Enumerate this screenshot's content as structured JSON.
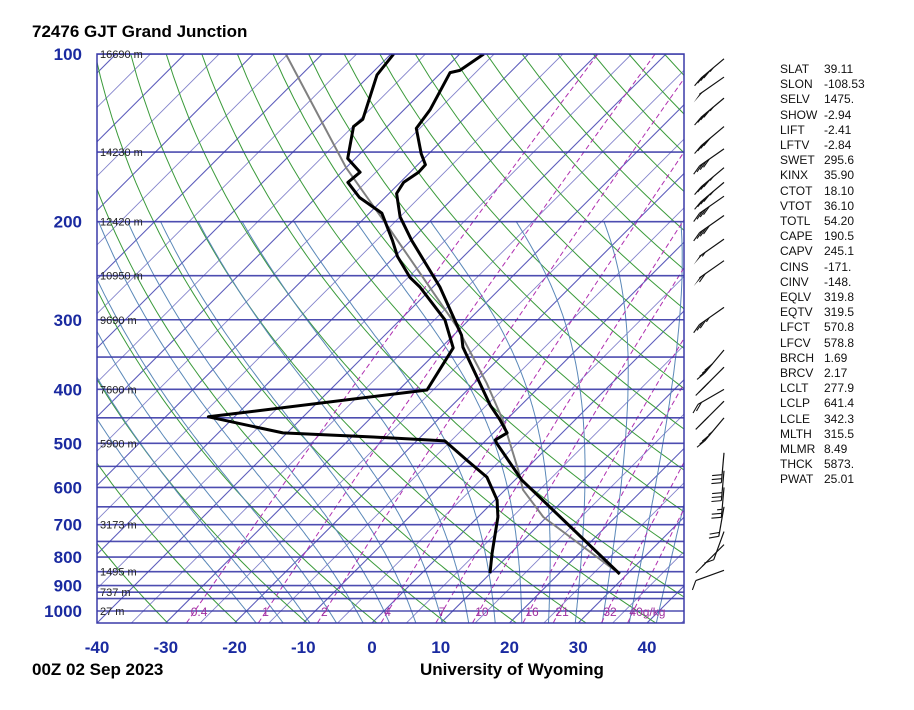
{
  "title": "72476 GJT Grand Junction",
  "footer_left": "00Z 02 Sep 2023",
  "footer_right": "University of Wyoming",
  "colors": {
    "isobar": "#3a3aa8",
    "isotherm": "#4040b0",
    "dry_adiabat": "#3a9a3a",
    "moist_adiabat": "#5a88b8",
    "mixing_ratio": "#b030b0",
    "temperature": "#000000",
    "dewpoint": "#000000",
    "parcel": "#808080",
    "axis_labels": "#1a2aa0"
  },
  "chart_data": {
    "type": "line",
    "diagram": "skew-T log-P",
    "xlabel": "",
    "ylabel": "",
    "x_ticks": [
      "-40",
      "-30",
      "-20",
      "-10",
      "0",
      "10",
      "20",
      "30",
      "40"
    ],
    "x_tick_values": [
      -40,
      -30,
      -20,
      -10,
      0,
      10,
      20,
      30,
      40
    ],
    "y_ticks": [
      "100",
      "200",
      "300",
      "400",
      "500",
      "600",
      "700",
      "800",
      "900",
      "1000"
    ],
    "y_tick_values": [
      100,
      200,
      300,
      400,
      500,
      600,
      700,
      800,
      900,
      1000
    ],
    "y_scale": "log",
    "ylim": [
      1050,
      100
    ],
    "xlim_at_bottom": [
      -40,
      45
    ],
    "height_labels": [
      {
        "p": 100,
        "label": "16690 m"
      },
      {
        "p": 150,
        "label": "14230 m"
      },
      {
        "p": 200,
        "label": "12420 m"
      },
      {
        "p": 250,
        "label": "10950 m"
      },
      {
        "p": 300,
        "label": "9690 m"
      },
      {
        "p": 400,
        "label": "7600 m"
      },
      {
        "p": 500,
        "label": "5900 m"
      },
      {
        "p": 700,
        "label": "3173 m"
      },
      {
        "p": 850,
        "label": "1495 m"
      },
      {
        "p": 925,
        "label": "737 m"
      },
      {
        "p": 1000,
        "label": "27 m"
      }
    ],
    "mixing_ratio_labels": [
      {
        "w": 0.4,
        "label": "0.4"
      },
      {
        "w": 1,
        "label": "1"
      },
      {
        "w": 2,
        "label": "2"
      },
      {
        "w": 4,
        "label": "4"
      },
      {
        "w": 7,
        "label": "7"
      },
      {
        "w": 10,
        "label": "10"
      },
      {
        "w": 16,
        "label": "16"
      },
      {
        "w": 21,
        "label": "21"
      },
      {
        "w": 32,
        "label": "32"
      },
      {
        "w": 40,
        "label": "40g/kg"
      }
    ],
    "temperature_profile": [
      [
        858,
        28.9
      ],
      [
        582,
        1.0
      ],
      [
        500,
        -8.0
      ],
      [
        493,
        -8.7
      ],
      [
        479,
        -8.0
      ],
      [
        454,
        -10.9
      ],
      [
        427,
        -14.5
      ],
      [
        336,
        -26.9
      ],
      [
        320,
        -28.8
      ],
      [
        262,
        -39.0
      ],
      [
        216,
        -49.9
      ],
      [
        196,
        -55.0
      ],
      [
        178,
        -58.9
      ],
      [
        170,
        -59.5
      ],
      [
        163,
        -58.8
      ],
      [
        158,
        -58.9
      ],
      [
        151,
        -61.1
      ],
      [
        136,
        -65.5
      ],
      [
        126,
        -66.2
      ],
      [
        108,
        -68.7
      ],
      [
        107,
        -67.6
      ],
      [
        100,
        -66.5
      ]
    ],
    "dewpoint_profile": [
      [
        855,
        9.9
      ],
      [
        787,
        7.3
      ],
      [
        678,
        2.9
      ],
      [
        632,
        0.3
      ],
      [
        575,
        -4.5
      ],
      [
        536,
        -9.9
      ],
      [
        495,
        -15.9
      ],
      [
        487,
        -26.9
      ],
      [
        479,
        -40.6
      ],
      [
        448,
        -53.8
      ],
      [
        401,
        -25.9
      ],
      [
        337,
        -28.2
      ],
      [
        300,
        -33.5
      ],
      [
        262,
        -41.9
      ],
      [
        252,
        -44.7
      ],
      [
        231,
        -49.6
      ],
      [
        216,
        -52.7
      ],
      [
        193,
        -58.2
      ],
      [
        181,
        -63.7
      ],
      [
        170,
        -67.6
      ],
      [
        163,
        -67.3
      ],
      [
        154,
        -71.1
      ],
      [
        135,
        -74.9
      ],
      [
        131,
        -74.6
      ],
      [
        109,
        -79.0
      ],
      [
        100,
        -79.6
      ]
    ],
    "parcel_profile": [
      [
        858,
        28.9
      ],
      [
        678,
        9.5
      ],
      [
        606,
        2.6
      ],
      [
        558,
        -1.0
      ],
      [
        454,
        -10.5
      ],
      [
        390,
        -18.2
      ],
      [
        309,
        -30.7
      ],
      [
        207,
        -54.5
      ],
      [
        160,
        -70.0
      ],
      [
        100,
        -95.3
      ]
    ],
    "wind_barbs": [
      {
        "p": 102,
        "dir": 230,
        "kt": 45
      },
      {
        "p": 110,
        "dir": 235,
        "kt": 50
      },
      {
        "p": 120,
        "dir": 230,
        "kt": 45
      },
      {
        "p": 135,
        "dir": 230,
        "kt": 40
      },
      {
        "p": 148,
        "dir": 235,
        "kt": 40
      },
      {
        "p": 160,
        "dir": 230,
        "kt": 45
      },
      {
        "p": 170,
        "dir": 230,
        "kt": 45
      },
      {
        "p": 180,
        "dir": 235,
        "kt": 40
      },
      {
        "p": 195,
        "dir": 235,
        "kt": 40
      },
      {
        "p": 215,
        "dir": 235,
        "kt": 55
      },
      {
        "p": 235,
        "dir": 235,
        "kt": 60
      },
      {
        "p": 285,
        "dir": 235,
        "kt": 35
      },
      {
        "p": 340,
        "dir": 220,
        "kt": 40
      },
      {
        "p": 365,
        "dir": 225,
        "kt": 30
      },
      {
        "p": 400,
        "dir": 240,
        "kt": 20
      },
      {
        "p": 420,
        "dir": 225,
        "kt": 25
      },
      {
        "p": 450,
        "dir": 220,
        "kt": 35
      },
      {
        "p": 520,
        "dir": 185,
        "kt": 30
      },
      {
        "p": 560,
        "dir": 185,
        "kt": 30
      },
      {
        "p": 600,
        "dir": 185,
        "kt": 25
      },
      {
        "p": 650,
        "dir": 190,
        "kt": 20
      },
      {
        "p": 720,
        "dir": 200,
        "kt": 10
      },
      {
        "p": 760,
        "dir": 225,
        "kt": 15
      },
      {
        "p": 845,
        "dir": 250,
        "kt": 10
      }
    ]
  },
  "indices": [
    {
      "label": "SLAT",
      "value": "39.11"
    },
    {
      "label": "SLON",
      "value": "-108.53"
    },
    {
      "label": "SELV",
      "value": "1475."
    },
    {
      "label": "SHOW",
      "value": "-2.94"
    },
    {
      "label": "LIFT",
      "value": "-2.41"
    },
    {
      "label": "LFTV",
      "value": "-2.84"
    },
    {
      "label": "SWET",
      "value": "295.6"
    },
    {
      "label": "KINX",
      "value": "35.90"
    },
    {
      "label": "CTOT",
      "value": "18.10"
    },
    {
      "label": "VTOT",
      "value": "36.10"
    },
    {
      "label": "TOTL",
      "value": "54.20"
    },
    {
      "label": "CAPE",
      "value": "190.5"
    },
    {
      "label": "CAPV",
      "value": "245.1"
    },
    {
      "label": "CINS",
      "value": "-171."
    },
    {
      "label": "CINV",
      "value": "-148."
    },
    {
      "label": "EQLV",
      "value": "319.8"
    },
    {
      "label": "EQTV",
      "value": "319.5"
    },
    {
      "label": "LFCT",
      "value": "570.8"
    },
    {
      "label": "LFCV",
      "value": "578.8"
    },
    {
      "label": "BRCH",
      "value": "1.69"
    },
    {
      "label": "BRCV",
      "value": "2.17"
    },
    {
      "label": "LCLT",
      "value": "277.9"
    },
    {
      "label": "LCLP",
      "value": "641.4"
    },
    {
      "label": "LCLE",
      "value": "342.3"
    },
    {
      "label": "MLTH",
      "value": "315.5"
    },
    {
      "label": "MLMR",
      "value": "8.49"
    },
    {
      "label": "THCK",
      "value": "5873."
    },
    {
      "label": "PWAT",
      "value": "25.01"
    }
  ]
}
